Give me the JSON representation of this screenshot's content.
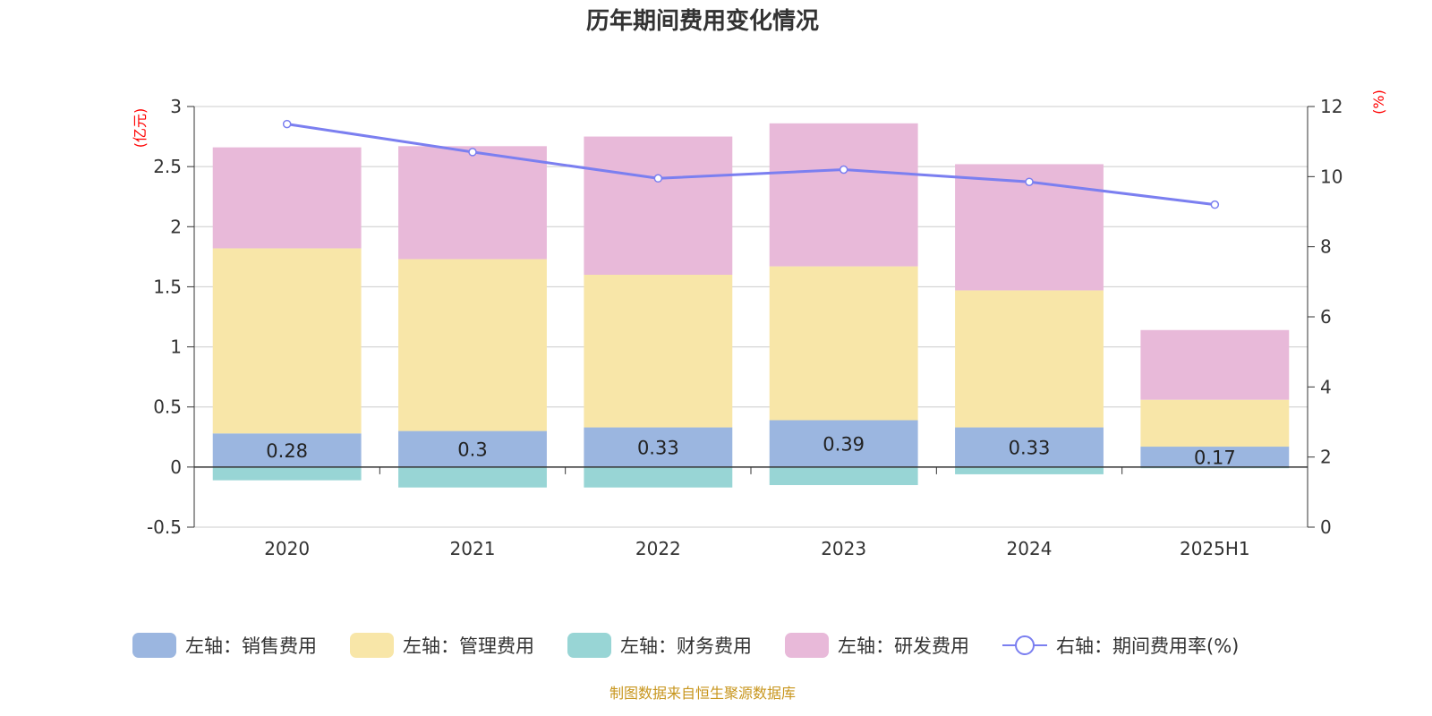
{
  "chart_data": {
    "type": "bar",
    "title": "历年期间费用变化情况",
    "categories": [
      "2020",
      "2021",
      "2022",
      "2023",
      "2024",
      "2025H1"
    ],
    "stacked": true,
    "series": [
      {
        "name": "左轴：销售费用",
        "axis": "left",
        "type": "bar",
        "color": "#9bb6e0",
        "values": [
          0.28,
          0.3,
          0.33,
          0.39,
          0.33,
          0.17
        ],
        "labels": [
          "0.28",
          "0.3",
          "0.33",
          "0.39",
          "0.33",
          "0.17"
        ]
      },
      {
        "name": "左轴：管理费用",
        "axis": "left",
        "type": "bar",
        "color": "#f8e6a8",
        "values": [
          1.54,
          1.43,
          1.27,
          1.28,
          1.14,
          0.39
        ]
      },
      {
        "name": "左轴：财务费用",
        "axis": "left",
        "type": "bar",
        "color": "#98d5d5",
        "values": [
          -0.11,
          -0.17,
          -0.17,
          -0.15,
          -0.06,
          -0.01
        ]
      },
      {
        "name": "左轴：研发费用",
        "axis": "left",
        "type": "bar",
        "color": "#e8b9d9",
        "values": [
          0.84,
          0.94,
          1.15,
          1.19,
          1.05,
          0.58
        ]
      },
      {
        "name": "右轴：期间费用率(%)",
        "axis": "right",
        "type": "line",
        "color": "#7b7ff0",
        "values": [
          11.5,
          10.7,
          9.95,
          10.2,
          9.85,
          9.2
        ]
      }
    ],
    "left_axis": {
      "unit": "(亿元)",
      "ylim": [
        -0.5,
        3
      ],
      "ticks": [
        -0.5,
        0,
        0.5,
        1,
        1.5,
        2,
        2.5,
        3
      ],
      "tick_labels": [
        "-0.5",
        "0",
        "0.5",
        "1",
        "1.5",
        "2",
        "2.5",
        "3"
      ]
    },
    "right_axis": {
      "unit": "(%)",
      "ylim": [
        0,
        12
      ],
      "ticks": [
        0,
        2,
        4,
        6,
        8,
        10,
        12
      ],
      "tick_labels": [
        "0",
        "2",
        "4",
        "6",
        "8",
        "10",
        "12"
      ]
    },
    "grid": true,
    "legend": "bottom"
  },
  "source_text": "制图数据来自恒生聚源数据库"
}
